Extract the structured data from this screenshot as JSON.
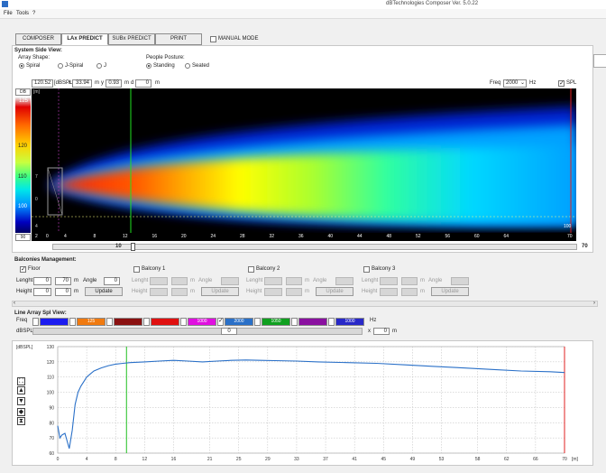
{
  "window": {
    "title": "dBTechnologies Composer Ver. 5.0.22"
  },
  "menu": [
    "File",
    "Tools",
    "?"
  ],
  "tabs": [
    "COMPOSER",
    "LAx PREDICT",
    "SUBx PREDICT",
    "PRINT"
  ],
  "manual_mode_label": "MANUAL MODE",
  "system_side": {
    "title": "System Side View:",
    "array_shape": {
      "label": "Array Shape:",
      "options": [
        "Spiral",
        "J-Spiral",
        "J"
      ],
      "selected": "Spiral"
    },
    "people_posture": {
      "label": "People Posture:",
      "options": [
        "Standing",
        "Seated"
      ],
      "selected": "Standing"
    },
    "cursor": {
      "dbspl_value": "120.52",
      "dbspl_label": "[dBSPL]",
      "x_label": "x",
      "x_value": "33.94",
      "m1": "m",
      "y_label": "y",
      "y_value": "0.93",
      "m2": "m",
      "d_label": "d",
      "d_value": "0",
      "m3": "m"
    },
    "freq": {
      "label": "Freq",
      "value": "2000",
      "unit": "Hz"
    },
    "spl_label": "SPL",
    "db_label": "DB",
    "m_label": "[m]",
    "scale_values": [
      "120",
      "110",
      "100"
    ],
    "scale_top": "125",
    "scale_bottom": "90",
    "x_ticks": [
      "2",
      "0",
      "4",
      "8",
      "12",
      "16",
      "20",
      "24",
      "28",
      "32",
      "36",
      "40",
      "44",
      "48",
      "52",
      "56",
      "60",
      "64",
      "70"
    ],
    "y_ticks": [
      "7",
      "0",
      "4"
    ],
    "slider_left_value": "10",
    "slider_right_value": "70",
    "end_label": "100"
  },
  "balconies": {
    "title": "Balconies Management:",
    "floor": {
      "label": "Floor",
      "length_label": "Lenght",
      "length_a": "0",
      "length_b": "70",
      "m": "m",
      "angle_label": "Angle",
      "angle": "0",
      "height_label": "Height",
      "height_a": "0",
      "height_b": "0",
      "update": "Update"
    },
    "groups": [
      {
        "label": "Balcony 1",
        "length_label": "Lenght",
        "height_label": "Height",
        "angle_label": "Angle",
        "m": "m",
        "update": "Update"
      },
      {
        "label": "Balcony 2",
        "length_label": "Lenght",
        "height_label": "Height",
        "angle_label": "Angle",
        "m": "m",
        "update": "Update"
      },
      {
        "label": "Balcony 3",
        "length_label": "Lenght",
        "height_label": "Height",
        "angle_label": "Angle",
        "m": "m",
        "update": "Update"
      }
    ]
  },
  "spl_view": {
    "title": "Line Array Spl View:",
    "freq_label": "Freq",
    "dbspl_label": "dBSPL",
    "bands": [
      {
        "label": "",
        "color": "#1c1cf0",
        "checked": false
      },
      {
        "label": "125",
        "color": "#f07a10",
        "checked": false
      },
      {
        "label": "",
        "color": "#8a1010",
        "checked": false
      },
      {
        "label": "",
        "color": "#e01010",
        "checked": false
      },
      {
        "label": "1000",
        "color": "#e010e0",
        "checked": false
      },
      {
        "label": "2000",
        "color": "#2a70c8",
        "checked": true
      },
      {
        "label": "1050",
        "color": "#10a020",
        "checked": false
      },
      {
        "label": "",
        "color": "#8a10a0",
        "checked": false
      },
      {
        "label": "1000",
        "color": "#2828c8",
        "checked": false
      }
    ],
    "selected_value": "0",
    "hz_label": "Hz",
    "x_field_label": "x",
    "x_value": "0",
    "x_unit": "m"
  },
  "chart_data": {
    "type": "line",
    "ylabel": "[dBSPL]",
    "xlabel": "[m]",
    "ylim": [
      60,
      130
    ],
    "xlim": [
      0,
      70
    ],
    "y_ticks": [
      130,
      120,
      110,
      100,
      90,
      80,
      70,
      60
    ],
    "x_ticks": [
      0,
      4,
      8,
      12,
      16,
      21,
      25,
      29,
      33,
      37,
      41,
      45,
      49,
      53,
      58,
      62,
      66,
      70
    ],
    "series": [
      {
        "color": "#2a70c8",
        "x": [
          0,
          0.3,
          0.6,
          1.0,
          1.3,
          1.6,
          2.0,
          2.4,
          2.8,
          3.2,
          3.6,
          4.0,
          4.5,
          5,
          6,
          7,
          8,
          9,
          10,
          12,
          14,
          16,
          18,
          20,
          22,
          24,
          26,
          28,
          30,
          33,
          36,
          40,
          44,
          48,
          52,
          56,
          60,
          64,
          68,
          70
        ],
        "values": [
          78,
          70,
          72,
          73,
          68,
          63,
          75,
          92,
          100,
          104,
          107,
          110,
          112,
          114,
          116,
          117.5,
          118.5,
          119,
          119.5,
          120,
          120.5,
          121,
          120.5,
          120,
          120.5,
          121,
          121.2,
          121,
          120.8,
          120.5,
          120,
          119.5,
          119,
          118,
          117,
          116,
          115,
          114,
          113.5,
          113
        ]
      }
    ],
    "vlines": [
      {
        "x": 9.5,
        "color": "#20c020"
      },
      {
        "x": 70,
        "color": "#e02020"
      }
    ]
  }
}
